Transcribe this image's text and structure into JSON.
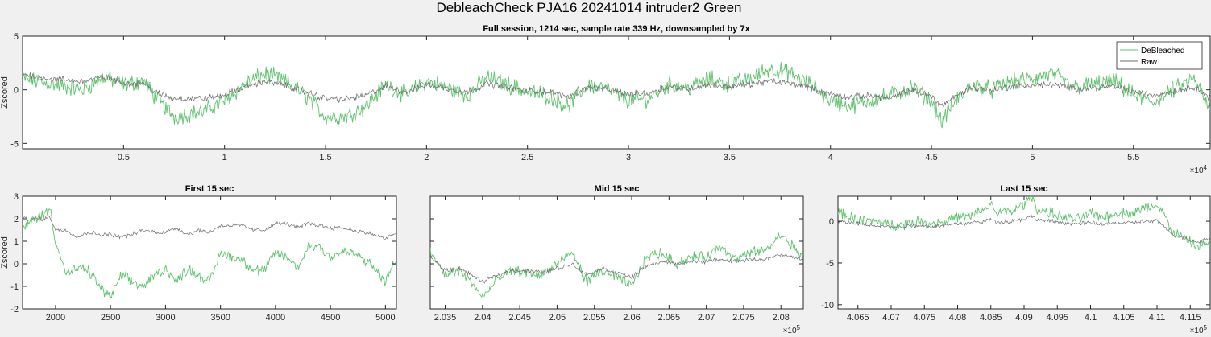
{
  "figure": {
    "title": "DebleachCheck PJA16 20241014  intruder2 Green",
    "colors": {
      "debleached": "#5fc36d",
      "raw": "#6e6e6e",
      "background": "#f0f0f0"
    }
  },
  "chart_data": [
    {
      "type": "line",
      "title": "Full session, 1214 sec, sample rate 339 Hz, downsampled by 7x",
      "ylabel": "Zscored",
      "xlim": [
        0,
        58800
      ],
      "ylim": [
        -5.5,
        5
      ],
      "xticks": [
        5000,
        10000,
        15000,
        20000,
        25000,
        30000,
        35000,
        40000,
        45000,
        50000,
        55000
      ],
      "xtick_labels": [
        "0.5",
        "1",
        "1.5",
        "2",
        "2.5",
        "3",
        "3.5",
        "4",
        "4.5",
        "5",
        "5.5"
      ],
      "x_exponent": "4",
      "yticks": [
        -5,
        0,
        5
      ],
      "ytick_labels": [
        "-5",
        "0",
        "5"
      ],
      "legend": {
        "location": "top-right",
        "entries": [
          "DeBleached",
          "Raw"
        ]
      },
      "series": [
        {
          "name": "DeBleached",
          "x": [
            0,
            1500,
            3000,
            4000,
            5000,
            6000,
            6500,
            7500,
            9000,
            10000,
            11000,
            12000,
            13000,
            14000,
            15000,
            16000,
            17000,
            18000,
            19000,
            20000,
            21000,
            22000,
            23000,
            24000,
            25000,
            26000,
            27000,
            28000,
            29000,
            30000,
            31000,
            32000,
            33000,
            34000,
            35000,
            36000,
            37000,
            38000,
            39000,
            40000,
            41000,
            42000,
            43000,
            44000,
            45000,
            45500,
            46000,
            47000,
            48000,
            49000,
            50000,
            51000,
            52000,
            53000,
            54000,
            55000,
            56000,
            57000,
            58000,
            58800
          ],
          "values": [
            1,
            0.5,
            0,
            1.2,
            0.5,
            0.8,
            -0.5,
            -2.5,
            -2,
            -1,
            0.5,
            1.5,
            0.8,
            -0.5,
            -2.5,
            -2.5,
            -1.5,
            0.5,
            -0.5,
            0.8,
            0.2,
            -0.5,
            1.2,
            0.5,
            -0.2,
            -0.5,
            -1.5,
            0.5,
            0,
            -1,
            -0.8,
            0.5,
            0.2,
            1,
            0.5,
            1,
            2,
            1.5,
            0.5,
            -1,
            -1.5,
            -1,
            -0.5,
            0.2,
            -1,
            -3,
            -1.5,
            0.5,
            0,
            0.8,
            1,
            1.5,
            0.2,
            0.5,
            0.8,
            -0.5,
            -1.2,
            0,
            1,
            -2
          ]
        },
        {
          "name": "Raw",
          "x": [
            0,
            1500,
            3000,
            4000,
            5000,
            6000,
            6500,
            7500,
            9000,
            10000,
            11000,
            12000,
            13000,
            14000,
            15000,
            16000,
            17000,
            18000,
            19000,
            20000,
            21000,
            22000,
            23000,
            24000,
            25000,
            26000,
            27000,
            28000,
            29000,
            30000,
            31000,
            32000,
            33000,
            34000,
            35000,
            36000,
            37000,
            38000,
            39000,
            40000,
            41000,
            42000,
            43000,
            44000,
            45000,
            45500,
            46000,
            47000,
            48000,
            49000,
            50000,
            51000,
            52000,
            53000,
            54000,
            55000,
            56000,
            57000,
            58000,
            58800
          ],
          "values": [
            1.5,
            1,
            0.8,
            1.2,
            0.6,
            0.6,
            -0.2,
            -0.8,
            -0.8,
            -0.5,
            0.3,
            0.8,
            0.4,
            -0.2,
            -0.8,
            -0.9,
            -0.5,
            0.3,
            -0.2,
            0.5,
            0.1,
            -0.2,
            0.6,
            0.2,
            -0.1,
            -0.2,
            -0.6,
            0.2,
            0,
            -0.4,
            -0.3,
            0.3,
            0.1,
            0.5,
            0.3,
            0.5,
            0.8,
            0.6,
            0.2,
            -0.4,
            -0.7,
            -0.5,
            -0.8,
            0,
            -0.6,
            -1.5,
            -0.8,
            0.2,
            0,
            0.3,
            0.4,
            0.5,
            0.1,
            0.2,
            0.3,
            -0.2,
            -0.5,
            -0.1,
            0.3,
            -0.8
          ]
        }
      ]
    },
    {
      "type": "line",
      "title": "First 15 sec",
      "ylabel": "Zscored",
      "xlim": [
        1700,
        5100
      ],
      "ylim": [
        -2,
        3
      ],
      "xticks": [
        2000,
        2500,
        3000,
        3500,
        4000,
        4500,
        5000
      ],
      "xtick_labels": [
        "2000",
        "2500",
        "3000",
        "3500",
        "4000",
        "4500",
        "5000"
      ],
      "x_exponent": "",
      "yticks": [
        -2,
        -1,
        0,
        1,
        2,
        3
      ],
      "ytick_labels": [
        "-2",
        "-1",
        "0",
        "1",
        "2",
        "3"
      ],
      "series": [
        {
          "name": "DeBleached",
          "x": [
            1700,
            1800,
            1900,
            1950,
            2000,
            2100,
            2200,
            2300,
            2400,
            2500,
            2600,
            2700,
            2800,
            2900,
            3000,
            3100,
            3200,
            3300,
            3400,
            3500,
            3600,
            3700,
            3800,
            3900,
            4000,
            4100,
            4200,
            4300,
            4400,
            4500,
            4600,
            4700,
            4800,
            4900,
            5000,
            5100
          ],
          "values": [
            1.5,
            2,
            2.2,
            2.5,
            1,
            -0.5,
            -0.2,
            -0.3,
            -1,
            -1.5,
            -0.5,
            -0.8,
            -1,
            -0.5,
            -0.2,
            -0.8,
            -0.2,
            -0.5,
            -0.8,
            0.5,
            0.3,
            0.2,
            -0.3,
            -0.3,
            0.5,
            0.3,
            -0.2,
            0.8,
            0.8,
            0.3,
            0.5,
            0.5,
            0.2,
            -0.2,
            -0.8,
            0.2
          ]
        },
        {
          "name": "Raw",
          "x": [
            1700,
            1800,
            1900,
            1950,
            2000,
            2100,
            2200,
            2300,
            2400,
            2500,
            2600,
            2700,
            2800,
            2900,
            3000,
            3100,
            3200,
            3300,
            3400,
            3500,
            3600,
            3700,
            3800,
            3900,
            4000,
            4100,
            4200,
            4300,
            4400,
            4500,
            4600,
            4700,
            4800,
            4900,
            5000,
            5100
          ],
          "values": [
            2,
            2,
            2,
            2.1,
            1.5,
            1.5,
            1.2,
            1.4,
            1.3,
            1.3,
            1.2,
            1.3,
            1.5,
            1.4,
            1.4,
            1.6,
            1.3,
            1.5,
            1.4,
            1.7,
            1.7,
            1.7,
            1.5,
            1.5,
            1.8,
            1.8,
            1.6,
            1.8,
            1.7,
            1.6,
            1.6,
            1.5,
            1.4,
            1.3,
            1.1,
            1.4
          ]
        }
      ]
    },
    {
      "type": "line",
      "title": "Mid 15 sec",
      "ylabel": "",
      "xlim": [
        203300,
        208300
      ],
      "ylim": [
        -2,
        3
      ],
      "xticks": [
        203500,
        204000,
        204500,
        205000,
        205500,
        206000,
        206500,
        207000,
        207500,
        208000
      ],
      "xtick_labels": [
        "2.035",
        "2.04",
        "2.045",
        "2.05",
        "2.055",
        "2.06",
        "2.065",
        "2.07",
        "2.075",
        "2.08"
      ],
      "x_exponent": "5",
      "yticks": [
        -2,
        -1,
        0,
        1,
        2,
        3
      ],
      "ytick_labels": [
        "",
        "",
        "",
        "",
        "",
        ""
      ],
      "series": [
        {
          "name": "DeBleached",
          "x": [
            203300,
            203500,
            203700,
            203900,
            204000,
            204200,
            204400,
            204600,
            204800,
            205000,
            205200,
            205400,
            205600,
            205800,
            206000,
            206200,
            206400,
            206600,
            206800,
            207000,
            207200,
            207400,
            207600,
            207800,
            208000,
            208300
          ],
          "values": [
            0.5,
            -0.5,
            -0.3,
            -1,
            -1.5,
            -0.7,
            -0.3,
            -0.4,
            -0.5,
            0,
            0.5,
            -0.8,
            -0.3,
            -0.6,
            -1,
            0.3,
            0.5,
            0,
            0.3,
            0.3,
            0.8,
            0.2,
            0.5,
            0.6,
            1.3,
            0.3
          ]
        },
        {
          "name": "Raw",
          "x": [
            203300,
            203500,
            203700,
            203900,
            204000,
            204200,
            204400,
            204600,
            204800,
            205000,
            205200,
            205400,
            205600,
            205800,
            206000,
            206200,
            206400,
            206600,
            206800,
            207000,
            207200,
            207400,
            207600,
            207800,
            208000,
            208300
          ],
          "values": [
            0.3,
            -0.3,
            -0.2,
            -0.6,
            -0.8,
            -0.5,
            -0.3,
            -0.3,
            -0.4,
            -0.2,
            0,
            -0.5,
            -0.2,
            -0.4,
            -0.6,
            -0.1,
            0.1,
            0,
            0.1,
            0.1,
            0.2,
            0.1,
            0.2,
            0.2,
            0.4,
            0.2
          ]
        }
      ]
    },
    {
      "type": "line",
      "title": "Last 15 sec",
      "ylabel": "",
      "xlim": [
        406200,
        411800
      ],
      "ylim": [
        -10.5,
        3
      ],
      "xticks": [
        406500,
        407000,
        407500,
        408000,
        408500,
        409000,
        409500,
        410000,
        410500,
        411000,
        411500
      ],
      "xtick_labels": [
        "4.065",
        "4.07",
        "4.075",
        "4.08",
        "4.085",
        "4.09",
        "4.095",
        "4.1",
        "4.105",
        "4.11",
        "4.115"
      ],
      "x_exponent": "5",
      "yticks": [
        -10,
        -5,
        0
      ],
      "ytick_labels": [
        "-10",
        "-5",
        "0"
      ],
      "series": [
        {
          "name": "DeBleached",
          "x": [
            406200,
            406400,
            406600,
            406800,
            407000,
            407200,
            407400,
            407600,
            407800,
            408000,
            408200,
            408400,
            408500,
            408600,
            408800,
            409000,
            409100,
            409200,
            409400,
            409600,
            409800,
            410000,
            410200,
            410400,
            410600,
            410800,
            411000,
            411100,
            411200,
            411400,
            411600,
            411800
          ],
          "values": [
            1,
            0.5,
            0,
            0,
            -0.5,
            -0.3,
            0,
            -0.3,
            0,
            0.5,
            0.5,
            1.5,
            2,
            1,
            1.2,
            2,
            3,
            1.5,
            1,
            0.5,
            0.2,
            1,
            0.5,
            1,
            1,
            1.5,
            2,
            1,
            -1,
            -2,
            -3,
            -2.5
          ]
        },
        {
          "name": "Raw",
          "x": [
            406200,
            406400,
            406600,
            406800,
            407000,
            407200,
            407400,
            407600,
            407800,
            408000,
            408200,
            408400,
            408500,
            408600,
            408800,
            409000,
            409100,
            409200,
            409400,
            409600,
            409800,
            410000,
            410200,
            410400,
            410600,
            410800,
            411000,
            411100,
            411200,
            411400,
            411600,
            411800
          ],
          "values": [
            0,
            -0.2,
            -0.4,
            -0.5,
            -0.7,
            -0.6,
            -0.5,
            -0.6,
            -0.5,
            -0.3,
            -0.2,
            0,
            0.2,
            -0.1,
            0,
            0.3,
            0.6,
            0.2,
            0,
            -0.2,
            -0.3,
            -0.2,
            -0.3,
            -0.2,
            -0.2,
            0,
            0,
            -0.5,
            -1.5,
            -2,
            -2.5,
            -2
          ]
        }
      ]
    }
  ]
}
